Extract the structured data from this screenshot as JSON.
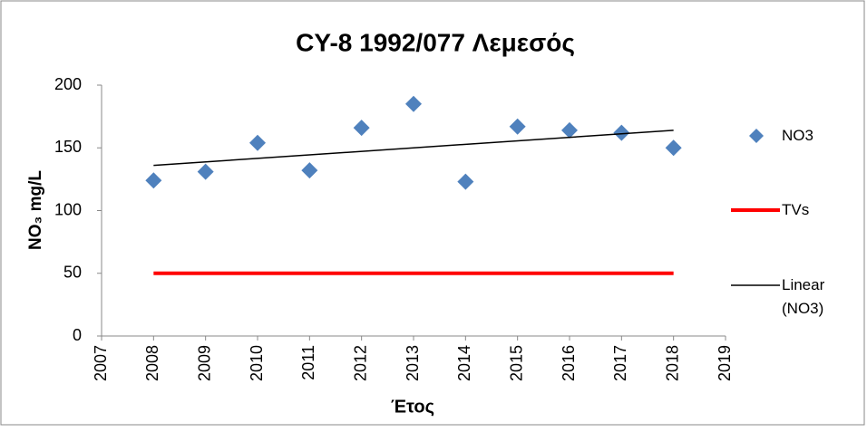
{
  "chart_data": {
    "type": "scatter",
    "title": "CY-8 1992/077 Λεμεσός",
    "x_label": "Έτος",
    "y_label": "NO₃ mg/L",
    "xlim": [
      2007,
      2019
    ],
    "xticks": [
      2007,
      2008,
      2009,
      2010,
      2011,
      2012,
      2013,
      2014,
      2015,
      2016,
      2017,
      2018,
      2019
    ],
    "ylim": [
      0,
      200
    ],
    "yticks": [
      0,
      50,
      100,
      150,
      200
    ],
    "grid": false,
    "legend": "right",
    "series": [
      {
        "name": "NO3",
        "color": "#4f81bd",
        "marker": "diamond",
        "x": [
          2008,
          2009,
          2010,
          2011,
          2012,
          2013,
          2014,
          2015,
          2016,
          2017,
          2018
        ],
        "values": [
          124,
          131,
          154,
          132,
          166,
          185,
          123,
          167,
          164,
          162,
          150
        ]
      },
      {
        "name": "TVs",
        "color": "#ff0000",
        "marker": "line",
        "x": [
          2008,
          2018
        ],
        "values": [
          50,
          50
        ]
      },
      {
        "name": "Linear (NO3)",
        "color": "#000000",
        "marker": "line",
        "x": [
          2008,
          2018
        ],
        "values": [
          136,
          164
        ]
      }
    ]
  }
}
